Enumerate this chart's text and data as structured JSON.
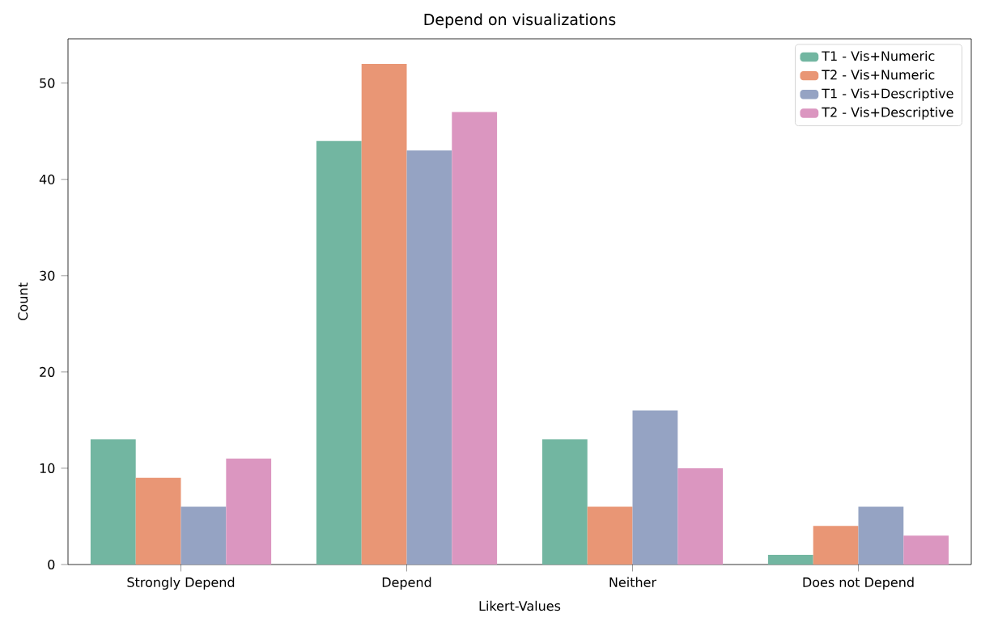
{
  "chart_data": {
    "type": "bar",
    "title": "Depend on visualizations",
    "xlabel": "Likert-Values",
    "ylabel": "Count",
    "categories": [
      "Strongly Depend",
      "Depend",
      "Neither",
      "Does not Depend"
    ],
    "series": [
      {
        "name": "T1 - Vis+Numeric",
        "color": "#72b6a1",
        "values": [
          13,
          44,
          13,
          1
        ]
      },
      {
        "name": "T2 - Vis+Numeric",
        "color": "#e99675",
        "values": [
          9,
          52,
          6,
          4
        ]
      },
      {
        "name": "T1 - Vis+Descriptive",
        "color": "#95a3c3",
        "values": [
          6,
          43,
          16,
          6
        ]
      },
      {
        "name": "T2 - Vis+Descriptive",
        "color": "#db96c0",
        "values": [
          11,
          47,
          10,
          3
        ]
      }
    ],
    "ylim": [
      0,
      54.6
    ],
    "yticks": [
      0,
      10,
      20,
      30,
      40,
      50
    ],
    "legend": "top right"
  }
}
